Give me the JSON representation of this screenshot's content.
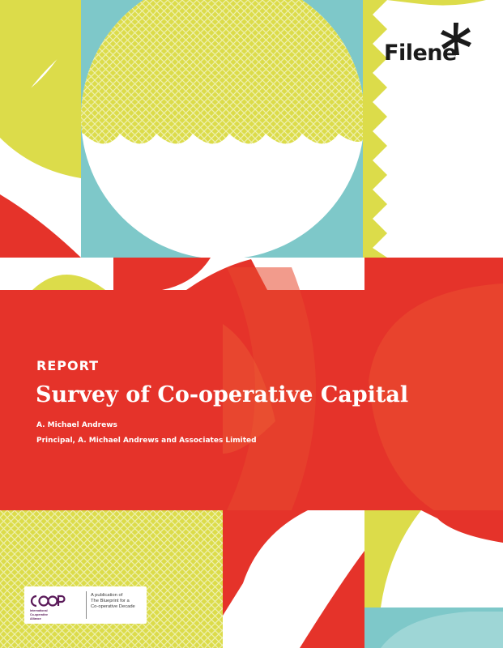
{
  "brand": {
    "name": "Filene"
  },
  "cover": {
    "label": "REPORT",
    "title": "Survey of Co-operative Capital",
    "author": "A. Michael Andrews",
    "affiliation": "Principal, A. Michael Andrews and Associates Limited"
  },
  "publisher": {
    "logo_text": "COOP",
    "org_name": "International\nCo-operative\nAlliance",
    "publication_note": "A publication of\nThe Blueprint for a\nCo-operative Decade"
  },
  "colors": {
    "red": "#e5332a",
    "yellow": "#dcdc4a",
    "teal": "#7ec8c9",
    "white": "#ffffff",
    "coop_purple": "#5a1a59"
  }
}
